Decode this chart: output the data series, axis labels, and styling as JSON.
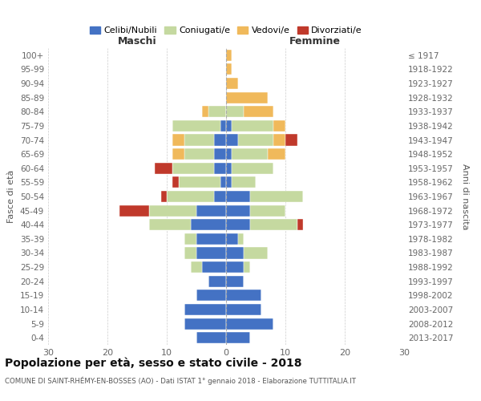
{
  "age_groups": [
    "0-4",
    "5-9",
    "10-14",
    "15-19",
    "20-24",
    "25-29",
    "30-34",
    "35-39",
    "40-44",
    "45-49",
    "50-54",
    "55-59",
    "60-64",
    "65-69",
    "70-74",
    "75-79",
    "80-84",
    "85-89",
    "90-94",
    "95-99",
    "100+"
  ],
  "birth_years": [
    "2013-2017",
    "2008-2012",
    "2003-2007",
    "1998-2002",
    "1993-1997",
    "1988-1992",
    "1983-1987",
    "1978-1982",
    "1973-1977",
    "1968-1972",
    "1963-1967",
    "1958-1962",
    "1953-1957",
    "1948-1952",
    "1943-1947",
    "1938-1942",
    "1933-1937",
    "1928-1932",
    "1923-1927",
    "1918-1922",
    "≤ 1917"
  ],
  "colors": {
    "celibe": "#4472c4",
    "coniugato": "#c5d9a0",
    "vedovo": "#f0b95b",
    "divorziato": "#c0392b"
  },
  "maschi": {
    "celibe": [
      5,
      7,
      7,
      5,
      3,
      4,
      5,
      5,
      6,
      5,
      2,
      1,
      2,
      2,
      2,
      1,
      0,
      0,
      0,
      0,
      0
    ],
    "coniugato": [
      0,
      0,
      0,
      0,
      0,
      2,
      2,
      2,
      7,
      8,
      8,
      7,
      7,
      5,
      5,
      8,
      3,
      0,
      0,
      0,
      0
    ],
    "vedovo": [
      0,
      0,
      0,
      0,
      0,
      0,
      0,
      0,
      0,
      0,
      0,
      0,
      0,
      2,
      2,
      0,
      1,
      0,
      0,
      0,
      0
    ],
    "divorziato": [
      0,
      0,
      0,
      0,
      0,
      0,
      0,
      0,
      0,
      5,
      1,
      1,
      3,
      0,
      0,
      0,
      0,
      0,
      0,
      0,
      0
    ]
  },
  "femmine": {
    "nubile": [
      4,
      8,
      6,
      6,
      3,
      3,
      3,
      2,
      4,
      4,
      4,
      1,
      1,
      1,
      2,
      1,
      0,
      0,
      0,
      0,
      0
    ],
    "coniugata": [
      0,
      0,
      0,
      0,
      0,
      1,
      4,
      1,
      8,
      6,
      9,
      4,
      7,
      6,
      6,
      7,
      3,
      0,
      0,
      0,
      0
    ],
    "vedova": [
      0,
      0,
      0,
      0,
      0,
      0,
      0,
      0,
      0,
      0,
      0,
      0,
      0,
      3,
      2,
      2,
      5,
      7,
      2,
      1,
      1
    ],
    "divorziata": [
      0,
      0,
      0,
      0,
      0,
      0,
      0,
      0,
      1,
      0,
      0,
      0,
      0,
      0,
      2,
      0,
      0,
      0,
      0,
      0,
      0
    ]
  },
  "xlim": 30,
  "title": "Popolazione per età, sesso e stato civile - 2018",
  "subtitle": "COMUNE DI SAINT-RHÉMY-EN-BOSSES (AO) - Dati ISTAT 1° gennaio 2018 - Elaborazione TUTTITALIA.IT",
  "ylabel_left": "Fasce di età",
  "ylabel_right": "Anni di nascita",
  "legend_labels": [
    "Celibi/Nubili",
    "Coniugati/e",
    "Vedovi/e",
    "Divorziati/e"
  ],
  "maschi_label": "Maschi",
  "femmine_label": "Femmine"
}
